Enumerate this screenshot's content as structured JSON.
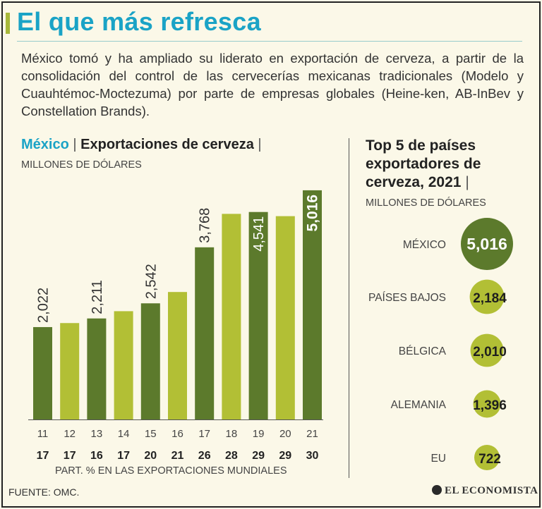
{
  "header": {
    "title": "El que más refresca",
    "intro": "México tomó y ha ampliado su liderato en exportación de cerveza, a partir de la consolidación del control de las cervecerías mexicanas tradicionales (Modelo y Cuauhtémoc-Moctezuma) por parte de empresas globales (Heine-ken, AB-InBev y Constellation Brands)."
  },
  "left_chart": {
    "country": "México",
    "subject": "Exportaciones de cerveza",
    "unit": "MILLONES DE DÓLARES",
    "share_label": "PART. % EN LAS EXPORTACIONES MUNDIALES"
  },
  "right_chart": {
    "title_line1": "Top 5 de países",
    "title_line2": "exportadores de",
    "title_line3": "cerveza, 2021",
    "unit": "MILLONES DE DÓLARES"
  },
  "footer": {
    "source": "FUENTE: OMC.",
    "brand": "EL ECONOMISTA"
  },
  "colors": {
    "dark_green": "#5c7a2c",
    "light_green": "#b2bf35",
    "title_blue": "#1aa3c6"
  },
  "chart_data": [
    {
      "type": "bar",
      "categories": [
        "11",
        "12",
        "13",
        "14",
        "15",
        "16",
        "17",
        "18",
        "19",
        "20",
        "21"
      ],
      "values": [
        2022,
        2110,
        2211,
        2370,
        2542,
        2790,
        3768,
        4500,
        4541,
        4450,
        5016
      ],
      "value_labels": [
        "2,022",
        "",
        "2,211",
        "",
        "2,542",
        "",
        "3,768",
        "",
        "4,541",
        "",
        "5,016"
      ],
      "share": [
        "17",
        "17",
        "16",
        "17",
        "20",
        "21",
        "26",
        "28",
        "29",
        "29",
        "30"
      ],
      "ylim": [
        0,
        5200
      ]
    },
    {
      "type": "bubble",
      "categories": [
        "MÉXICO",
        "PAÍSES BAJOS",
        "BÉLGICA",
        "ALEMANIA",
        "EU"
      ],
      "values": [
        5016,
        2184,
        2010,
        1396,
        722
      ],
      "value_labels": [
        "5,016",
        "2,184",
        "2,010",
        "1,396",
        "722"
      ]
    }
  ]
}
